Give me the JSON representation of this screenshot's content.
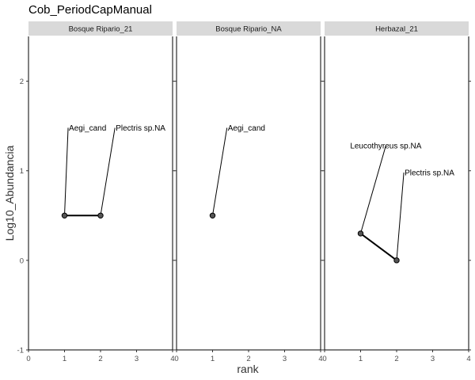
{
  "chart_data": {
    "type": "line",
    "title": "Cob_PeriodCapManual",
    "xlabel": "rank",
    "ylabel": "Log10_Abundancia",
    "xlim": [
      0,
      4
    ],
    "ylim": [
      -1,
      2.5
    ],
    "x_ticks": [
      "0",
      "1",
      "2",
      "3",
      "4"
    ],
    "y_ticks": [
      "-1",
      "0",
      "1",
      "2"
    ],
    "grid": false,
    "panels": [
      {
        "strip": "Bosque Ripario_21",
        "points": [
          {
            "x": 1,
            "y": 0.5,
            "label": "Aegi_cand",
            "label_x": 1.1,
            "label_y": 1.48
          },
          {
            "x": 2,
            "y": 0.5,
            "label": "Plectris sp.NA",
            "label_x": 2.4,
            "label_y": 1.48
          }
        ]
      },
      {
        "strip": "Bosque Ripario_NA",
        "points": [
          {
            "x": 1,
            "y": 0.5,
            "label": "Aegi_cand",
            "label_x": 1.4,
            "label_y": 1.48
          }
        ]
      },
      {
        "strip": "Herbazal_21",
        "points": [
          {
            "x": 1,
            "y": 0.3,
            "label": "Leucothyreus sp.NA",
            "label_x": 1.7,
            "label_y": 1.28
          },
          {
            "x": 2,
            "y": 0.0,
            "label": "Plectris sp.NA",
            "label_x": 2.2,
            "label_y": 0.98
          }
        ]
      }
    ]
  }
}
